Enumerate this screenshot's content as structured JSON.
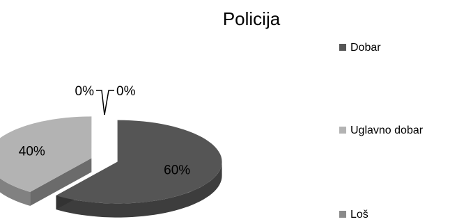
{
  "chart_data": {
    "type": "pie",
    "title": "Policija",
    "categories": [
      "Dobar",
      "Uglavno dobar",
      "Loš"
    ],
    "values": [
      60,
      40,
      0
    ],
    "data_labels": [
      "60%",
      "40%",
      "0%"
    ],
    "extra_labels": [
      "0%"
    ],
    "colors": [
      "#555555",
      "#b3b3b3",
      "#8a8a8a"
    ],
    "style": "3d-exploded",
    "legend_position": "right"
  }
}
